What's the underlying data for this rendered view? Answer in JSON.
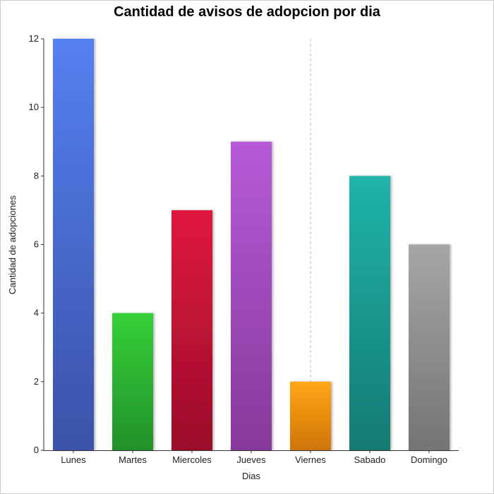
{
  "chart_data": {
    "type": "bar",
    "title": "Cantidad de avisos de adopcion por dia",
    "xlabel": "Dias",
    "ylabel": "Cantidad de adopciones",
    "categories": [
      "Lunes",
      "Martes",
      "Miercoles",
      "Jueves",
      "Viernes",
      "Sabado",
      "Domingo"
    ],
    "values": [
      12,
      4,
      7,
      9,
      2,
      8,
      6
    ],
    "colors": [
      [
        "#5580f0",
        "#3a52a8"
      ],
      [
        "#36d038",
        "#22902a"
      ],
      [
        "#e0163e",
        "#9a0e2a"
      ],
      [
        "#b65ad8",
        "#86399a"
      ],
      [
        "#ffa616",
        "#cf7408"
      ],
      [
        "#20b4aa",
        "#147a72"
      ],
      [
        "#a6a6a6",
        "#747474"
      ]
    ],
    "ylim": [
      0,
      12
    ],
    "yticks": [
      0,
      2,
      4,
      6,
      8,
      10,
      12
    ],
    "grid": false,
    "legend": "none"
  }
}
